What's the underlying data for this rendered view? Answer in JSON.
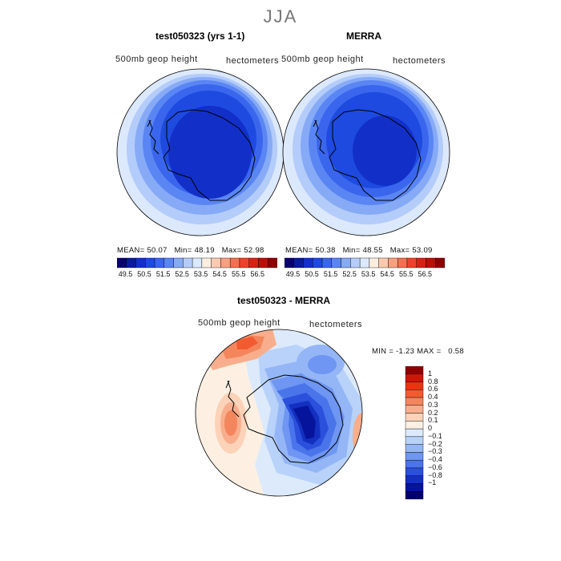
{
  "main_title": "JJA",
  "panels": [
    {
      "title": "test050323 (yrs 1-1)",
      "var_label": "500mb geop height",
      "units_label": "hectometers",
      "stats": {
        "mean_label": "MEAN=",
        "mean": "50.07",
        "min_label": "Min=",
        "min": "48.19",
        "max_label": "Max=",
        "max": "52.98"
      }
    },
    {
      "title": "MERRA",
      "var_label": "500mb geop height",
      "units_label": "hectometers",
      "stats": {
        "mean_label": "MEAN=",
        "mean": "50.38",
        "min_label": "Min=",
        "min": "48.55",
        "max_label": "Max=",
        "max": "53.09"
      }
    }
  ],
  "top_colorbar": {
    "ticks": [
      "49.5",
      "50.5",
      "51.5",
      "52.5",
      "53.5",
      "54.5",
      "55.5",
      "56.5"
    ],
    "colors": [
      "#08006e",
      "#0a1a9e",
      "#1230c8",
      "#1e4ae0",
      "#3a66ee",
      "#5a86f4",
      "#86aaf6",
      "#b4ccfa",
      "#dce8fc",
      "#fdeee0",
      "#fccab0",
      "#f9a080",
      "#f4704e",
      "#ec4428",
      "#d42414",
      "#b81008",
      "#8c0000"
    ]
  },
  "diff_panel": {
    "title": "test050323 - MERRA",
    "var_label": "500mb geop height",
    "units_label": "hectometers",
    "min_label": "MIN =",
    "min": "-1.23",
    "max_label": "MAX =",
    "max": "0.58"
  },
  "diff_colorbar": {
    "ticks": [
      "1",
      "0.8",
      "0.6",
      "0.4",
      "0.3",
      "0.2",
      "0.1",
      "0",
      "−0.1",
      "−0.2",
      "−0.3",
      "−0.4",
      "−0.6",
      "−0.8",
      "−1"
    ],
    "colors": [
      "#8c0000",
      "#c81808",
      "#e83410",
      "#f45a30",
      "#f4865e",
      "#f8ae8c",
      "#fcd2b8",
      "#fdf0e2",
      "#dceafc",
      "#b8d2fa",
      "#94b6f6",
      "#6e96f2",
      "#4a74ea",
      "#2a50dc",
      "#1430c0",
      "#06149c",
      "#020070"
    ]
  },
  "colors": {
    "coast": "#000000",
    "background": "#ffffff"
  }
}
